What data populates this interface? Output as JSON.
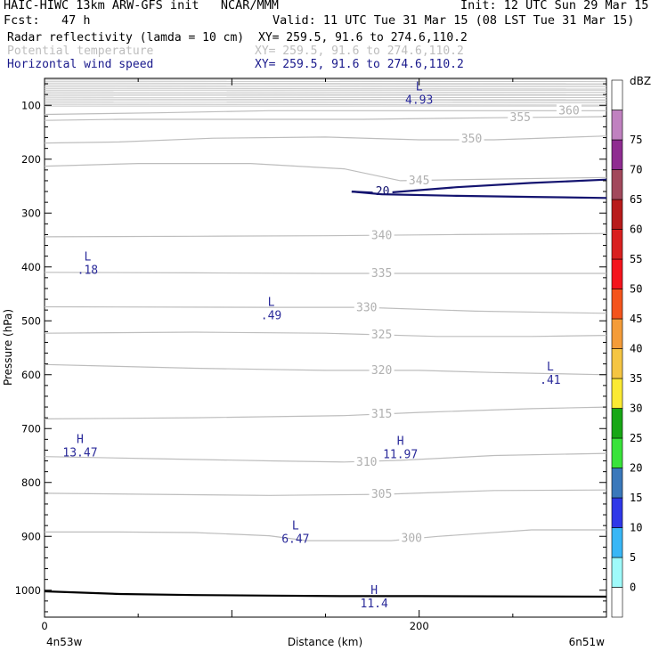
{
  "header": {
    "title": "HAIC-HIWC 13km ARW-GFS init   NCAR/MMM",
    "init": "Init: 12 UTC Sun 29 Mar 15",
    "fcst": "Fcst:   47 h",
    "valid": "Valid: 11 UTC Tue 31 Mar 15 (08 LST Tue 31 Mar 15)",
    "fields": [
      {
        "name": "Radar reflectivity (lamda = 10 cm)",
        "xy": "XY= 259.5, 91.6 to 274.6,110.2",
        "color": "#000000"
      },
      {
        "name": "Potential temperature",
        "xy": "XY= 259.5, 91.6 to 274.6,110.2",
        "color": "#bdbdbd"
      },
      {
        "name": "Horizontal wind speed",
        "xy": "XY= 259.5, 91.6 to 274.6,110.2",
        "color": "#1a1a8c"
      }
    ]
  },
  "chart_data": {
    "type": "cross-section",
    "x": {
      "label": "Distance (km)",
      "range": [
        0,
        300
      ],
      "ticks": [
        0,
        200
      ],
      "left_label": "4n53w",
      "right_label": "6n51w"
    },
    "y": {
      "label": "Pressure (hPa)",
      "range": [
        50,
        1050
      ],
      "ticks": [
        100,
        200,
        300,
        400,
        500,
        600,
        700,
        800,
        900,
        1000
      ]
    },
    "colorbar": {
      "unit": "dBZ",
      "levels": [
        -5,
        0,
        5,
        10,
        15,
        20,
        25,
        30,
        35,
        40,
        45,
        50,
        55,
        60,
        65,
        70,
        75
      ],
      "labels": [
        "0",
        "5",
        "10",
        "15",
        "20",
        "25",
        "30",
        "35",
        "40",
        "45",
        "50",
        "55",
        "60",
        "65",
        "70",
        "75"
      ],
      "colors": [
        "#ffffff",
        "#9ffafa",
        "#39b7f6",
        "#2f38e8",
        "#3a78bb",
        "#39e33a",
        "#17a715",
        "#fbea33",
        "#f5c542",
        "#f49c39",
        "#f4541c",
        "#f4141c",
        "#d92020",
        "#b81b1b",
        "#a2485c",
        "#8f2c91",
        "#c081c0",
        "#ffffff"
      ]
    },
    "theta_contours": [
      {
        "label": "300",
        "points": [
          [
            0,
            892
          ],
          [
            40,
            892
          ],
          [
            80,
            893
          ],
          [
            120,
            899
          ],
          [
            140,
            908
          ],
          [
            185,
            908
          ],
          [
            210,
            900
          ],
          [
            260,
            888
          ],
          [
            300,
            888
          ]
        ],
        "label_at": [
          196,
          904
        ]
      },
      {
        "label": "305",
        "points": [
          [
            0,
            820
          ],
          [
            60,
            822
          ],
          [
            120,
            824
          ],
          [
            180,
            822
          ],
          [
            240,
            815
          ],
          [
            300,
            814
          ]
        ],
        "label_at": [
          180,
          822
        ]
      },
      {
        "label": "310",
        "points": [
          [
            0,
            752
          ],
          [
            60,
            756
          ],
          [
            120,
            760
          ],
          [
            160,
            762
          ],
          [
            190,
            759
          ],
          [
            240,
            750
          ],
          [
            300,
            746
          ]
        ],
        "label_at": [
          172,
          762
        ]
      },
      {
        "label": "315",
        "points": [
          [
            0,
            682
          ],
          [
            80,
            680
          ],
          [
            160,
            676
          ],
          [
            200,
            670
          ],
          [
            260,
            663
          ],
          [
            300,
            660
          ]
        ],
        "label_at": [
          180,
          673
        ]
      },
      {
        "label": "320",
        "points": [
          [
            0,
            581
          ],
          [
            80,
            588
          ],
          [
            150,
            592
          ],
          [
            200,
            592
          ],
          [
            240,
            596
          ],
          [
            300,
            600
          ]
        ],
        "label_at": [
          180,
          592
        ]
      },
      {
        "label": "325",
        "points": [
          [
            0,
            523
          ],
          [
            80,
            521
          ],
          [
            150,
            523
          ],
          [
            210,
            529
          ],
          [
            260,
            529
          ],
          [
            300,
            527
          ]
        ],
        "label_at": [
          180,
          526
        ]
      },
      {
        "label": "330",
        "points": [
          [
            0,
            474
          ],
          [
            120,
            475
          ],
          [
            170,
            475
          ],
          [
            230,
            482
          ],
          [
            300,
            486
          ]
        ],
        "label_at": [
          172,
          476
        ]
      },
      {
        "label": "335",
        "points": [
          [
            0,
            410
          ],
          [
            80,
            411
          ],
          [
            150,
            412
          ],
          [
            220,
            412
          ],
          [
            300,
            412
          ]
        ],
        "label_at": [
          180,
          412
        ]
      },
      {
        "label": "340",
        "points": [
          [
            0,
            344
          ],
          [
            80,
            343
          ],
          [
            150,
            342
          ],
          [
            220,
            340
          ],
          [
            300,
            338
          ]
        ],
        "label_at": [
          180,
          342
        ]
      },
      {
        "label": "345",
        "points": [
          [
            0,
            213
          ],
          [
            50,
            208
          ],
          [
            110,
            208
          ],
          [
            160,
            218
          ],
          [
            190,
            240
          ],
          [
            240,
            237
          ],
          [
            300,
            234
          ]
        ],
        "label_at": [
          200,
          240
        ]
      },
      {
        "label": "350",
        "points": [
          [
            0,
            170
          ],
          [
            40,
            168
          ],
          [
            90,
            161
          ],
          [
            150,
            159
          ],
          [
            200,
            164
          ],
          [
            240,
            164
          ],
          [
            300,
            157
          ]
        ],
        "label_at": [
          228,
          162
        ]
      },
      {
        "label": "355",
        "points": [
          [
            0,
            128
          ],
          [
            40,
            126
          ],
          [
            110,
            126
          ],
          [
            170,
            126
          ],
          [
            240,
            123
          ],
          [
            300,
            121
          ]
        ],
        "label_at": [
          254,
          123
        ]
      },
      {
        "label": "360",
        "points": [
          [
            0,
            117
          ],
          [
            60,
            114
          ],
          [
            120,
            110
          ],
          [
            180,
            110
          ],
          [
            240,
            110
          ],
          [
            300,
            110
          ]
        ],
        "label_at": [
          280,
          110
        ]
      }
    ],
    "wind_contours": [
      {
        "label": "20",
        "points": [
          [
            164,
            260
          ],
          [
            180,
            263
          ],
          [
            220,
            252
          ],
          [
            260,
            244
          ],
          [
            300,
            238
          ]
        ],
        "label_at": [
          180,
          258
        ]
      },
      {
        "label": "",
        "points": [
          [
            164,
            260
          ],
          [
            180,
            265
          ],
          [
            220,
            268
          ],
          [
            260,
            270
          ],
          [
            300,
            272
          ]
        ]
      }
    ],
    "extrema": [
      {
        "type": "L",
        "value": "4.93",
        "x": 200,
        "y": 72
      },
      {
        "type": "L",
        "value": ".18",
        "x": 23,
        "y": 388
      },
      {
        "type": "L",
        "value": ".49",
        "x": 121,
        "y": 472
      },
      {
        "type": "L",
        "value": ".41",
        "x": 270,
        "y": 592
      },
      {
        "type": "H",
        "value": "13.47",
        "x": 19,
        "y": 727
      },
      {
        "type": "H",
        "value": "11.97",
        "x": 190,
        "y": 730
      },
      {
        "type": "L",
        "value": "6.47",
        "x": 134,
        "y": 887
      },
      {
        "type": "H",
        "value": "11.4",
        "x": 176,
        "y": 1007
      }
    ],
    "surface_pressure": [
      [
        0,
        1002
      ],
      [
        40,
        1007
      ],
      [
        80,
        1009
      ],
      [
        120,
        1010
      ],
      [
        160,
        1011
      ],
      [
        200,
        1011
      ],
      [
        300,
        1012
      ]
    ]
  }
}
